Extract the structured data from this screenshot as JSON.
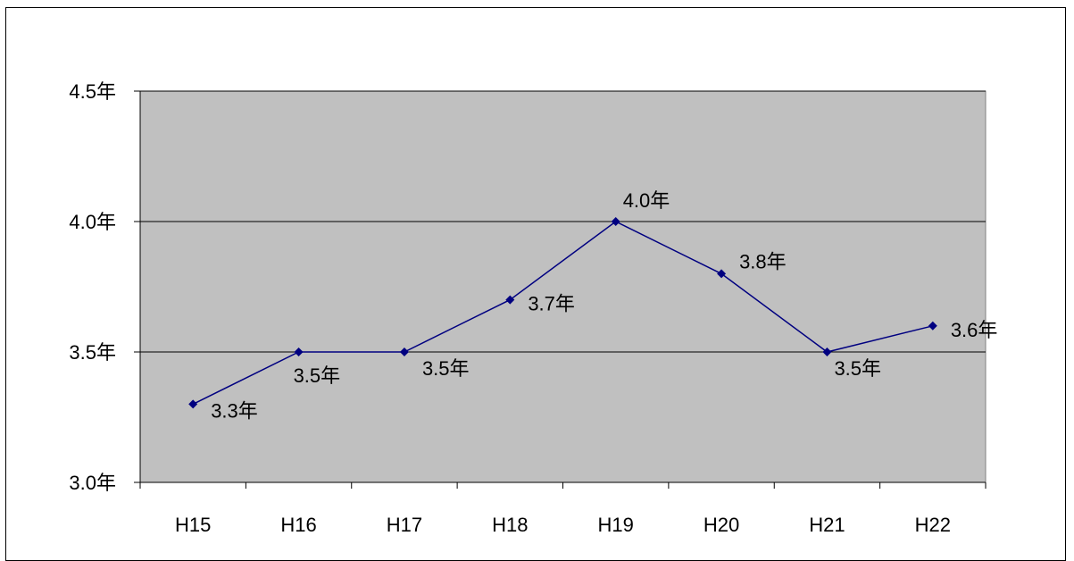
{
  "chart_data": {
    "type": "line",
    "categories": [
      "H15",
      "H16",
      "H17",
      "H18",
      "H19",
      "H20",
      "H21",
      "H22"
    ],
    "series": [
      {
        "values": [
          3.3,
          3.5,
          3.5,
          3.7,
          4.0,
          3.8,
          3.5,
          3.6
        ],
        "labels": [
          "3.3年",
          "3.5年",
          "3.5年",
          "3.7年",
          "4.0年",
          "3.8年",
          "3.5年",
          "3.6年"
        ],
        "color": "#000080"
      }
    ],
    "ylim": [
      3.0,
      4.5
    ],
    "yticks": [
      3.0,
      3.5,
      4.0,
      4.5
    ],
    "ytick_labels": [
      "3.0年",
      "3.5年",
      "4.0年",
      "4.5年"
    ],
    "grid": true,
    "plot_background": "#c0c0c0",
    "title": "",
    "xlabel": "",
    "ylabel": ""
  }
}
